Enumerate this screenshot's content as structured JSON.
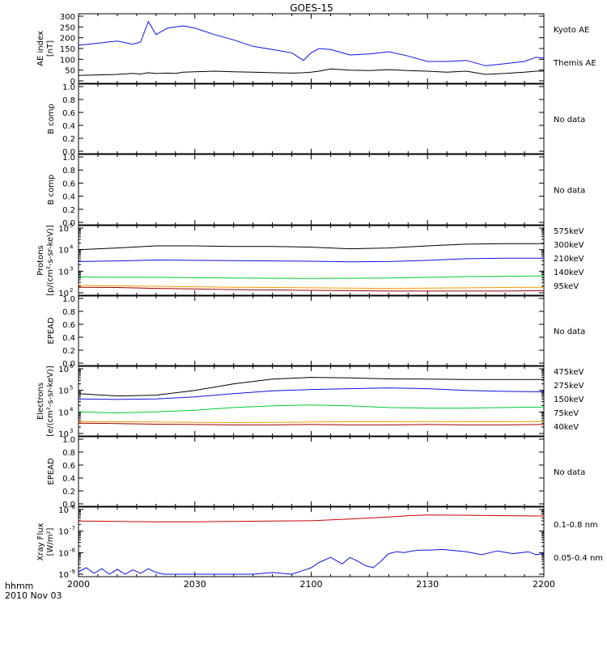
{
  "title": "GOES-15",
  "x_axis": {
    "ticks": [
      "2000",
      "2030",
      "2100",
      "2130",
      "2200"
    ],
    "label_line1": "hhmm",
    "label_line2": "2010 Nov 03"
  },
  "no_data_text": "No data",
  "colors": {
    "black": "#000000",
    "blue": "#1010e0",
    "red": "#a00000",
    "orange": "#ff9900",
    "green": "#00cc33",
    "xray_red": "#cc0000"
  },
  "chart_data": [
    {
      "type": "line",
      "panel": "ae",
      "ylabel_line1": "AE index",
      "ylabel_line2": "[nT]",
      "ylim": [
        0,
        300
      ],
      "yticks": [
        "0",
        "50",
        "100",
        "150",
        "200",
        "250",
        "300"
      ],
      "x_minutes_from_2000": [
        0,
        10,
        14,
        16,
        18,
        20,
        23,
        25,
        27,
        30,
        35,
        40,
        45,
        50,
        55,
        58,
        60,
        62,
        65,
        70,
        75,
        80,
        85,
        90,
        95,
        100,
        105,
        110,
        115,
        118,
        120
      ],
      "series": [
        {
          "name": "Kyoto AE",
          "color": "blue",
          "values": [
            165,
            185,
            170,
            180,
            275,
            215,
            245,
            250,
            255,
            245,
            215,
            190,
            160,
            145,
            130,
            95,
            130,
            150,
            145,
            120,
            125,
            135,
            115,
            90,
            90,
            95,
            70,
            80,
            90,
            110,
            105
          ]
        },
        {
          "name": "Themis AE",
          "color": "black",
          "values": [
            25,
            30,
            35,
            32,
            38,
            34,
            36,
            35,
            40,
            42,
            45,
            42,
            40,
            38,
            36,
            38,
            40,
            45,
            55,
            50,
            48,
            52,
            48,
            45,
            40,
            45,
            30,
            35,
            40,
            45,
            45
          ]
        }
      ]
    },
    {
      "type": "line",
      "panel": "bcomp1",
      "ylabel_line1": "B comp",
      "ylabel_line2": "",
      "ylim": [
        0,
        1
      ],
      "yticks": [
        "0.0",
        "0.2",
        "0.4",
        "0.6",
        "0.8",
        "1.0"
      ],
      "series": []
    },
    {
      "type": "line",
      "panel": "bcomp2",
      "ylabel_line1": "B comp",
      "ylabel_line2": "",
      "ylim": [
        0,
        1
      ],
      "yticks": [
        "0.0",
        "0.2",
        "0.4",
        "0.6",
        "0.8",
        "1.0"
      ],
      "series": []
    },
    {
      "type": "line",
      "panel": "protons",
      "log_scale": true,
      "ylabel_line1": "Protons",
      "ylabel_line2": "[p/(cm²-s-sr-keV)]",
      "ylim": [
        100,
        100000
      ],
      "ytick_exponents": [
        "2",
        "3",
        "4",
        "5"
      ],
      "x_minutes_from_2000": [
        0,
        10,
        20,
        30,
        40,
        50,
        60,
        70,
        80,
        90,
        100,
        110,
        120
      ],
      "series": [
        {
          "name": "575keV",
          "color": "red",
          "values": [
            180,
            175,
            160,
            150,
            140,
            135,
            130,
            125,
            120,
            120,
            120,
            120,
            125
          ]
        },
        {
          "name": "300keV",
          "color": "orange",
          "values": [
            220,
            210,
            200,
            190,
            180,
            175,
            170,
            165,
            160,
            165,
            170,
            175,
            180
          ]
        },
        {
          "name": "210keV",
          "color": "green",
          "values": [
            550,
            520,
            520,
            500,
            480,
            470,
            460,
            470,
            480,
            520,
            560,
            580,
            600
          ]
        },
        {
          "name": "140keV",
          "color": "blue",
          "values": [
            2800,
            3000,
            3300,
            3200,
            3100,
            3000,
            2900,
            2700,
            2800,
            3200,
            3800,
            4000,
            4000
          ]
        },
        {
          "name": "95keV",
          "color": "black",
          "values": [
            10000,
            12000,
            15000,
            15000,
            14000,
            14000,
            13000,
            11000,
            12000,
            15000,
            18000,
            19000,
            19000
          ]
        }
      ]
    },
    {
      "type": "line",
      "panel": "epead1",
      "ylabel_line1": "EPEAD",
      "ylabel_line2": "",
      "ylim": [
        0,
        1
      ],
      "yticks": [
        "0.0",
        "0.2",
        "0.4",
        "0.6",
        "0.8",
        "1.0"
      ],
      "series": []
    },
    {
      "type": "line",
      "panel": "electrons",
      "log_scale": true,
      "ylabel_line1": "Electrons",
      "ylabel_line2": "[e/(cm²-s-sr-keV)]",
      "ylim": [
        1000,
        1000000
      ],
      "ytick_exponents": [
        "3",
        "4",
        "5",
        "6"
      ],
      "x_minutes_from_2000": [
        0,
        10,
        20,
        30,
        40,
        50,
        60,
        70,
        80,
        90,
        100,
        110,
        120
      ],
      "series": [
        {
          "name": "475keV",
          "color": "red",
          "values": [
            3000,
            2900,
            2700,
            2600,
            2500,
            2500,
            2600,
            2500,
            2500,
            2600,
            2500,
            2500,
            2600
          ]
        },
        {
          "name": "275keV",
          "color": "orange",
          "values": [
            3500,
            3500,
            3400,
            3300,
            3200,
            3300,
            3400,
            3500,
            3500,
            3600,
            3500,
            3500,
            3600
          ]
        },
        {
          "name": "150keV",
          "color": "green",
          "values": [
            10000,
            9000,
            10000,
            12000,
            16000,
            19000,
            21000,
            19000,
            16000,
            15000,
            15000,
            16000,
            17000
          ]
        },
        {
          "name": "75keV",
          "color": "blue",
          "values": [
            40000,
            38000,
            40000,
            50000,
            70000,
            95000,
            110000,
            120000,
            130000,
            120000,
            100000,
            90000,
            85000
          ]
        },
        {
          "name": "40keV",
          "color": "black",
          "values": [
            70000,
            55000,
            60000,
            100000,
            200000,
            330000,
            400000,
            380000,
            340000,
            330000,
            320000,
            320000,
            320000
          ]
        }
      ]
    },
    {
      "type": "line",
      "panel": "epead2",
      "ylabel_line1": "EPEAD",
      "ylabel_line2": "",
      "ylim": [
        0,
        1
      ],
      "yticks": [
        "0.0",
        "0.2",
        "0.4",
        "0.6",
        "0.8",
        "1.0"
      ],
      "series": []
    },
    {
      "type": "line",
      "panel": "xray",
      "log_scale": true,
      "ylabel_line1": "Xray Flux",
      "ylabel_line2": "[W/m²]",
      "ylim": [
        1e-09,
        1e-06
      ],
      "ytick_exponents": [
        "-9",
        "-8",
        "-7",
        "-6"
      ],
      "series": [
        {
          "name": "0.1-0.8 nm",
          "color": "xray_red",
          "x_minutes_from_2000": [
            0,
            10,
            20,
            30,
            40,
            50,
            60,
            70,
            80,
            85,
            90,
            100,
            110,
            120
          ],
          "values": [
            2.9e-07,
            2.8e-07,
            2.7e-07,
            2.7e-07,
            2.8e-07,
            2.9e-07,
            3e-07,
            3.6e-07,
            4.5e-07,
            5.2e-07,
            5.6e-07,
            5.4e-07,
            5.2e-07,
            5e-07
          ]
        },
        {
          "name": "0.05-0.4 nm",
          "color": "blue",
          "x_minutes_from_2000": [
            0,
            2,
            4,
            6,
            8,
            10,
            12,
            14,
            16,
            18,
            20,
            22,
            24,
            26,
            30,
            35,
            40,
            45,
            50,
            55,
            58,
            60,
            62,
            65,
            68,
            70,
            72,
            74,
            76,
            78,
            80,
            82,
            84,
            86,
            88,
            90,
            94,
            98,
            100,
            104,
            108,
            112,
            116,
            118,
            120
          ],
          "values": [
            1.3e-09,
            2e-09,
            1.1e-09,
            1.8e-09,
            1e-09,
            1.7e-09,
            1e-09,
            1.6e-09,
            1.1e-09,
            1.8e-09,
            1.2e-09,
            1e-09,
            1e-09,
            1e-09,
            1e-09,
            1e-09,
            1e-09,
            1e-09,
            1.2e-09,
            1e-09,
            1.5e-09,
            2e-09,
            3.5e-09,
            6e-09,
            3e-09,
            6e-09,
            4e-09,
            2.5e-09,
            2e-09,
            4e-09,
            9e-09,
            1.1e-08,
            1e-08,
            1.2e-08,
            1.3e-08,
            1.3e-08,
            1.4e-08,
            1.2e-08,
            1.1e-08,
            8e-09,
            1.2e-08,
            9e-09,
            1.1e-08,
            8e-09,
            9e-09
          ]
        }
      ]
    }
  ]
}
